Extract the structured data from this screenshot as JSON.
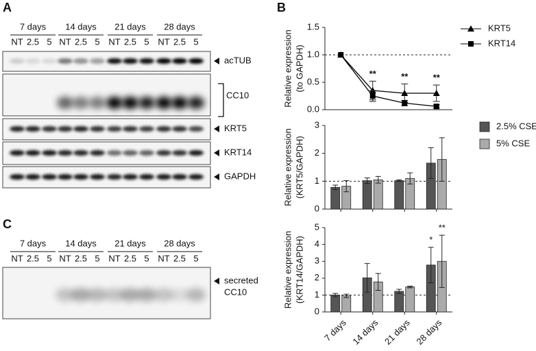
{
  "figure": {
    "panel_labels": [
      "A",
      "B",
      "C"
    ]
  },
  "blots": {
    "panel_a": {
      "groups": [
        "7 days",
        "14 days",
        "21 days",
        "28 days"
      ],
      "lanes": [
        "NT",
        "2.5",
        "5"
      ],
      "proteins": [
        "acTUB",
        "CC10",
        "KRT5",
        "KRT14",
        "GAPDH"
      ]
    },
    "panel_c": {
      "groups": [
        "7 days",
        "14 days",
        "21 days",
        "28 days"
      ],
      "lanes": [
        "NT",
        "2.5",
        "5"
      ],
      "proteins": [
        "secreted",
        "CC10"
      ]
    }
  },
  "chart_data": [
    {
      "type": "line",
      "ylabel": [
        "Relative expression",
        "(to GAPDH)"
      ],
      "categories": [
        null,
        null,
        null,
        null
      ],
      "series": [
        {
          "name": "KRT5",
          "color": "#000000",
          "marker": "triangle",
          "values": [
            1.0,
            0.35,
            0.3,
            0.3
          ],
          "errors": [
            null,
            0.17,
            0.17,
            0.15
          ]
        },
        {
          "name": "KRT14",
          "color": "#000000",
          "marker": "square",
          "values": [
            1.0,
            0.25,
            0.12,
            0.06
          ],
          "errors": [
            null,
            0.1,
            0.05,
            0.03
          ]
        }
      ],
      "annotations": [
        null,
        "**",
        "**",
        "**"
      ],
      "reference_line": 1,
      "ylim": [
        0,
        1.5
      ],
      "yticks": [
        {
          "value": 0,
          "label": "0.0"
        },
        {
          "value": 0.5,
          "label": "0.5"
        },
        {
          "value": 1,
          "label": "1.0"
        },
        {
          "value": 1.5,
          "label": "1.5"
        }
      ]
    },
    {
      "type": "bar",
      "ylabel": [
        "Relative expression",
        "(KRT5/GAPDH)"
      ],
      "categories": [
        null,
        null,
        null,
        null
      ],
      "series": [
        {
          "name": "2.5% CSE",
          "color": "#555555",
          "values": [
            0.78,
            1.02,
            1.02,
            1.65
          ],
          "errors": [
            0.08,
            0.1,
            0.03,
            0.55
          ]
        },
        {
          "name": "5% CSE",
          "color": "#aaaaaa",
          "values": [
            0.82,
            1.05,
            1.1,
            1.78
          ],
          "errors": [
            0.2,
            0.12,
            0.2,
            0.78
          ]
        }
      ],
      "reference_line": 1,
      "ylim": [
        0,
        3
      ],
      "yticks": [
        0,
        1,
        2,
        3
      ]
    },
    {
      "type": "bar",
      "ylabel": [
        "Relative expression",
        "(KRT14/GAPDH)"
      ],
      "categories": [
        "7 days",
        "14 days",
        "21 days",
        "28 days"
      ],
      "series": [
        {
          "name": "2.5% CSE",
          "color": "#555555",
          "values": [
            1.0,
            2.02,
            1.22,
            2.78
          ],
          "errors": [
            0.1,
            0.85,
            0.12,
            1.05
          ],
          "annotations": [
            null,
            null,
            null,
            "*"
          ]
        },
        {
          "name": "5% CSE",
          "color": "#aaaaaa",
          "values": [
            0.95,
            1.78,
            1.48,
            3.0
          ],
          "errors": [
            0.1,
            0.5,
            0.05,
            1.55
          ],
          "annotations": [
            null,
            null,
            null,
            "**"
          ]
        }
      ],
      "reference_line": 1,
      "ylim": [
        0,
        5
      ],
      "yticks": [
        0,
        1,
        2,
        3,
        4,
        5
      ]
    }
  ]
}
